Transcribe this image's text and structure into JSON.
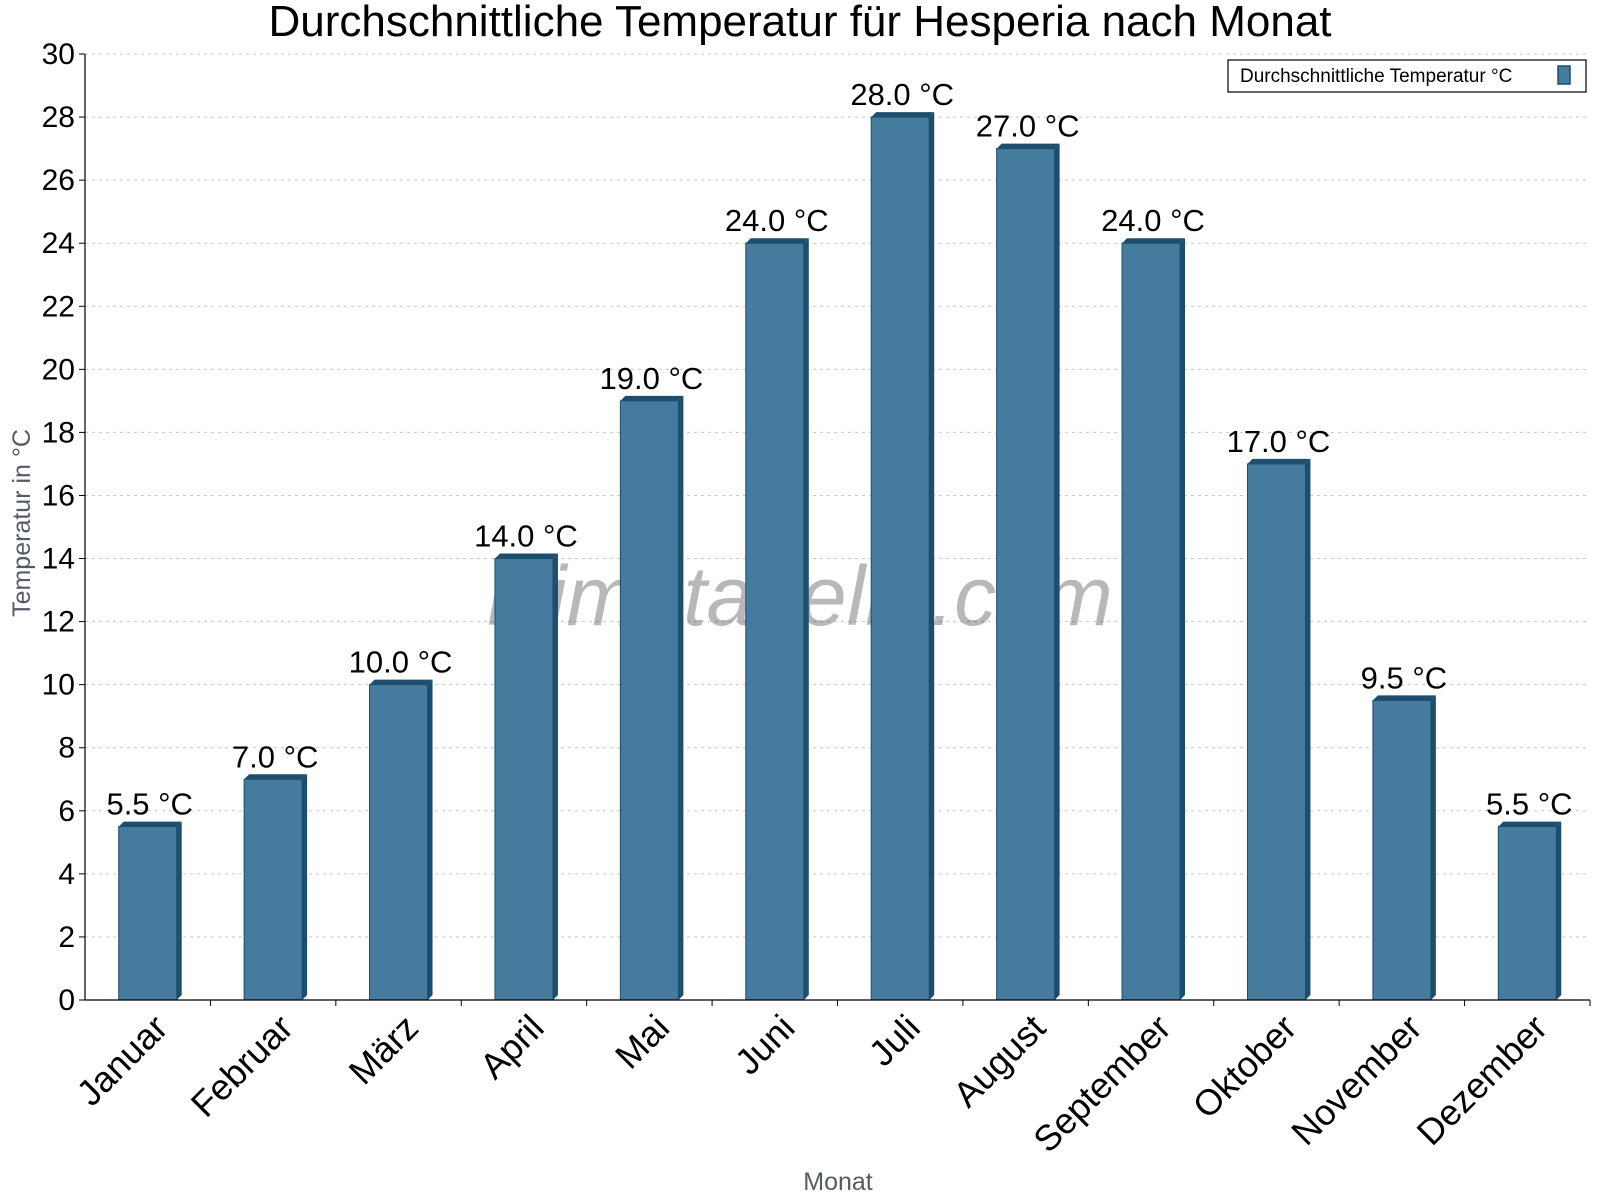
{
  "chart_data": {
    "type": "bar",
    "title": "Durchschnittliche Temperatur für Hesperia nach Monat",
    "xlabel": "Monat",
    "ylabel": "Temperatur in °C",
    "ylim": [
      0,
      30
    ],
    "ytick_step": 2,
    "grid": true,
    "legend_position": "top-right",
    "categories": [
      "Januar",
      "Februar",
      "März",
      "April",
      "Mai",
      "Juni",
      "Juli",
      "August",
      "September",
      "Oktober",
      "November",
      "Dezember"
    ],
    "series": [
      {
        "name": "Durchschnittliche Temperatur °C",
        "values": [
          5.5,
          7.0,
          10.0,
          14.0,
          19.0,
          24.0,
          28.0,
          27.0,
          24.0,
          17.0,
          9.5,
          5.5
        ],
        "data_labels": [
          "5.5 °C",
          "7.0 °C",
          "10.0 °C",
          "14.0 °C",
          "19.0 °C",
          "24.0 °C",
          "28.0 °C",
          "27.0 °C",
          "24.0 °C",
          "17.0 °C",
          "9.5 °C",
          "5.5 °C"
        ],
        "color": "#457b9d",
        "edge_color": "#1d4e6e"
      }
    ]
  },
  "watermark": "klimatabelle.com"
}
